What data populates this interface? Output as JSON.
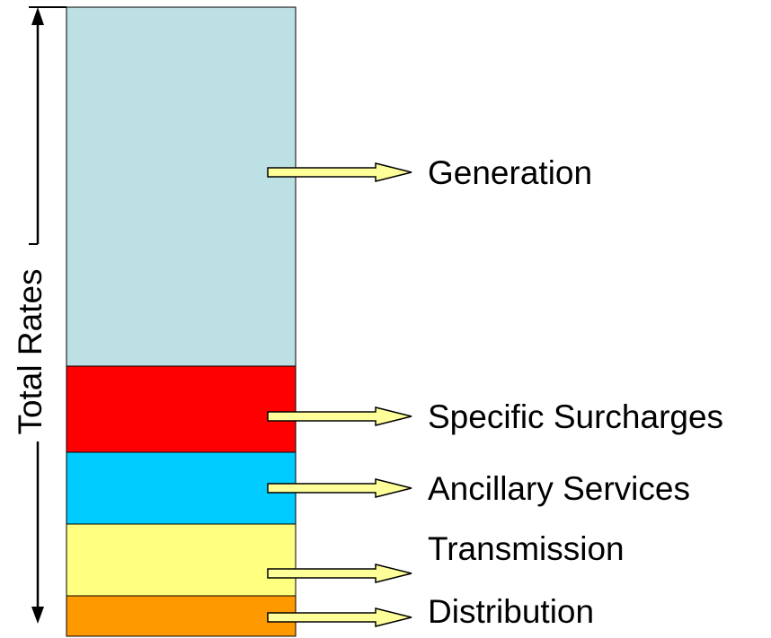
{
  "axis_label": "Total Rates",
  "segments": [
    {
      "label": "Generation",
      "color": "#bde0e4"
    },
    {
      "label": "Specific Surcharges",
      "color": "#ff0000"
    },
    {
      "label": "Ancillary Services",
      "color": "#00ccff"
    },
    {
      "label": "Transmission",
      "color": "#ffff80"
    },
    {
      "label": "Distribution",
      "color": "#ff9900"
    }
  ],
  "colors": {
    "arrow_fill": "#ffff99",
    "outline": "#000000"
  }
}
